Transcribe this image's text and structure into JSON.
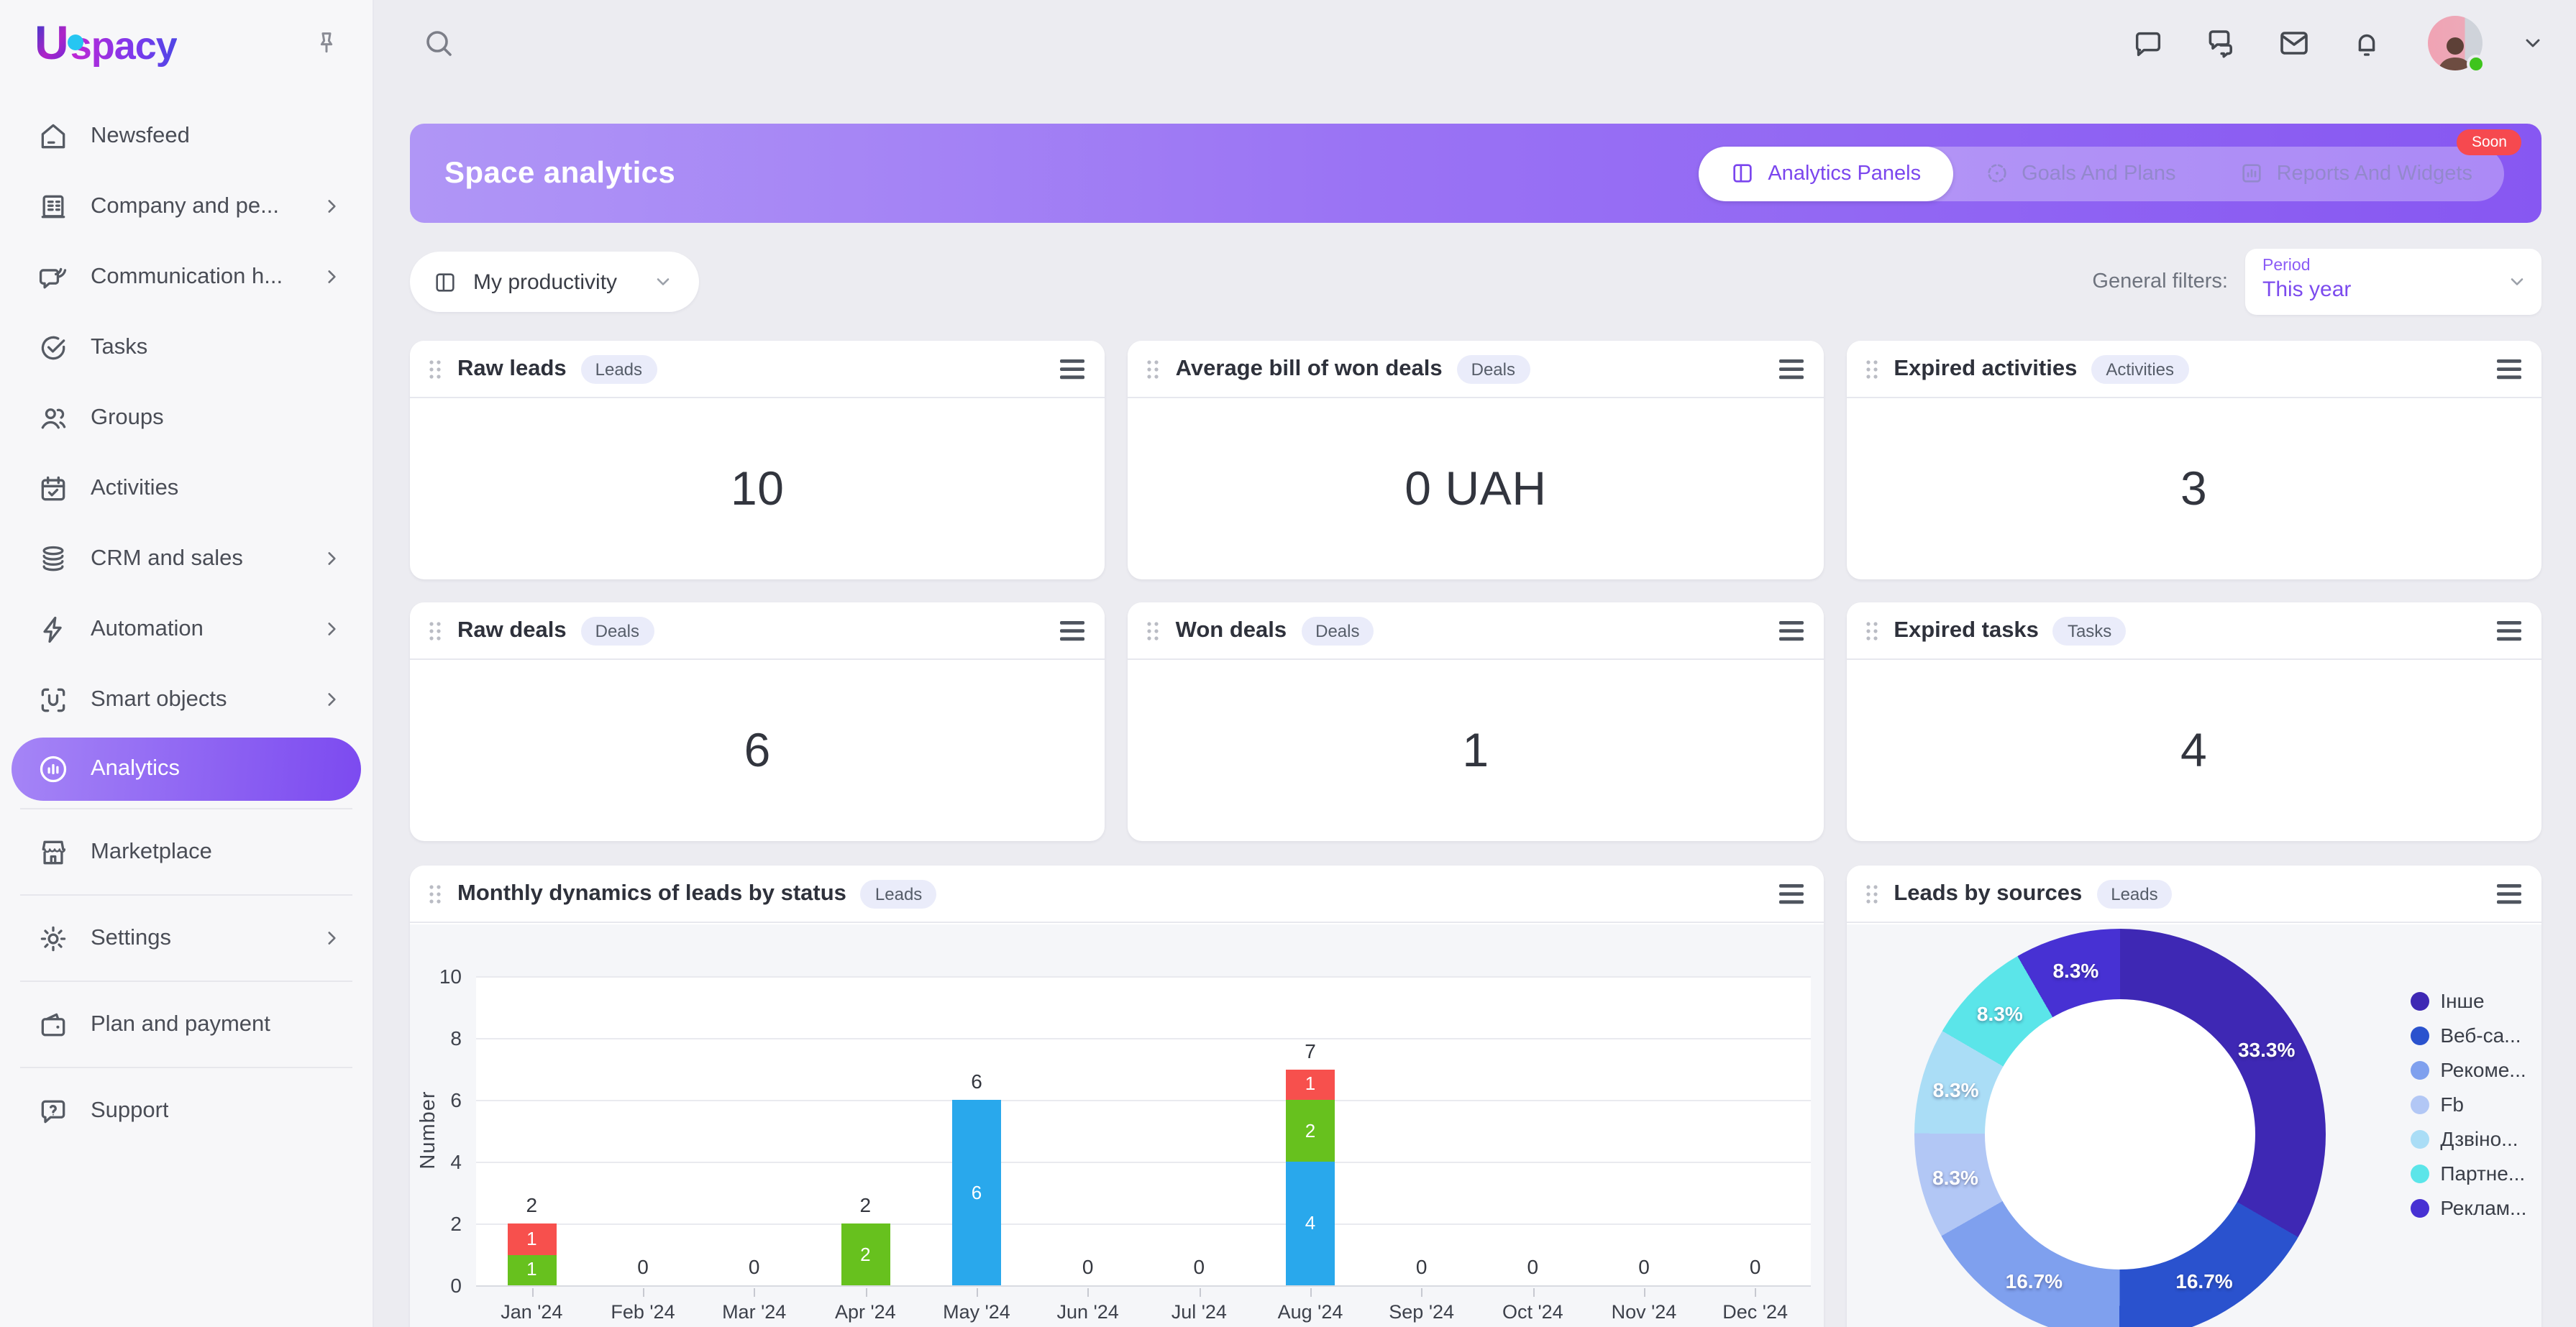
{
  "app": {
    "logo_letter": "U",
    "logo_rest": "spacy"
  },
  "sidebar": {
    "items": [
      {
        "label": "Newsfeed"
      },
      {
        "label": "Company and pe..."
      },
      {
        "label": "Communication h..."
      },
      {
        "label": "Tasks"
      },
      {
        "label": "Groups"
      },
      {
        "label": "Activities"
      },
      {
        "label": "CRM and sales"
      },
      {
        "label": "Automation"
      },
      {
        "label": "Smart objects"
      },
      {
        "label": "Analytics"
      },
      {
        "label": "Marketplace"
      },
      {
        "label": "Settings"
      },
      {
        "label": "Plan and payment"
      },
      {
        "label": "Support"
      }
    ]
  },
  "header": {
    "title": "Space analytics",
    "tabs": [
      {
        "label": "Analytics Panels"
      },
      {
        "label": "Goals And Plans"
      },
      {
        "label": "Reports And Widgets"
      }
    ],
    "soon_badge": "Soon"
  },
  "filters": {
    "panel_selector": "My productivity",
    "general_label": "General filters:",
    "period_label": "Period",
    "period_value": "This year"
  },
  "kpi_cards": [
    {
      "title": "Raw leads",
      "badge": "Leads",
      "value": "10"
    },
    {
      "title": "Average bill of won deals",
      "badge": "Deals",
      "value": "0 UAH"
    },
    {
      "title": "Expired activities",
      "badge": "Activities",
      "value": "3"
    },
    {
      "title": "Raw deals",
      "badge": "Deals",
      "value": "6"
    },
    {
      "title": "Won deals",
      "badge": "Deals",
      "value": "1"
    },
    {
      "title": "Expired tasks",
      "badge": "Tasks",
      "value": "4"
    }
  ],
  "chart_data": [
    {
      "type": "bar",
      "stacked": true,
      "title": "Monthly dynamics of leads by status",
      "badge": "Leads",
      "xlabel": "",
      "ylabel": "Number",
      "ylim": [
        0,
        10
      ],
      "yticks": [
        0,
        2,
        4,
        6,
        8,
        10
      ],
      "grid": true,
      "categories": [
        "Jan '24",
        "Feb '24",
        "Mar '24",
        "Apr '24",
        "May '24",
        "Jun '24",
        "Jul '24",
        "Aug '24",
        "Sep '24",
        "Oct '24",
        "Nov '24",
        "Dec '24"
      ],
      "series": [
        {
          "name": "status-blue",
          "color": "#29a8ec",
          "values": [
            0,
            0,
            0,
            0,
            6,
            0,
            0,
            4,
            0,
            0,
            0,
            0
          ]
        },
        {
          "name": "status-green",
          "color": "#67c11e",
          "values": [
            1,
            0,
            0,
            2,
            0,
            0,
            0,
            2,
            0,
            0,
            0,
            0
          ]
        },
        {
          "name": "status-red",
          "color": "#f7504d",
          "values": [
            1,
            0,
            0,
            0,
            0,
            0,
            0,
            1,
            0,
            0,
            0,
            0
          ]
        }
      ],
      "totals": [
        2,
        0,
        0,
        2,
        6,
        0,
        0,
        7,
        0,
        0,
        0,
        0
      ]
    },
    {
      "type": "donut",
      "title": "Leads by sources",
      "badge": "Leads",
      "legend_position": "right",
      "slices": [
        {
          "label": "Інше",
          "pct": 33.3,
          "color": "#3e28b4"
        },
        {
          "label": "Веб-са...",
          "pct": 16.7,
          "color": "#2a52ce"
        },
        {
          "label": "Рекоме...",
          "pct": 16.7,
          "color": "#7fa0ee"
        },
        {
          "label": "Fb",
          "pct": 8.3,
          "color": "#b2c7f5"
        },
        {
          "label": "Дзвіно...",
          "pct": 8.3,
          "color": "#aaddf6"
        },
        {
          "label": "Партне...",
          "pct": 8.3,
          "color": "#5be5e9"
        },
        {
          "label": "Реклам...",
          "pct": 8.3,
          "color": "#4731d3"
        }
      ]
    }
  ]
}
